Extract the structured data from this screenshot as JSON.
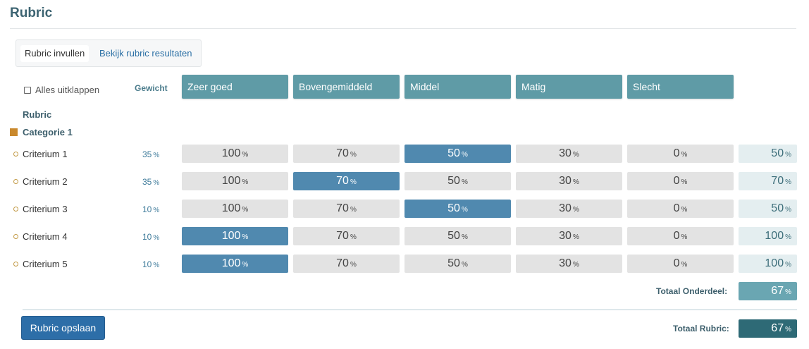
{
  "page": {
    "title": "Rubric"
  },
  "tabs": {
    "fill": "Rubric invullen",
    "results": "Bekijk rubric resultaten"
  },
  "controls": {
    "expand_all": "Alles uitklappen",
    "weight_header": "Gewicht"
  },
  "levels": [
    "Zeer goed",
    "Bovengemiddeld",
    "Middel",
    "Matig",
    "Slecht"
  ],
  "rubric_label": "Rubric",
  "category": {
    "name": "Categorie 1",
    "color": "#c9892d"
  },
  "unit": "%",
  "cell_values": [
    "100",
    "70",
    "50",
    "30",
    "0"
  ],
  "criteria": [
    {
      "name": "Criterium 1",
      "weight": "35",
      "selected_level": 2,
      "score": "50"
    },
    {
      "name": "Criterium 2",
      "weight": "35",
      "selected_level": 1,
      "score": "70"
    },
    {
      "name": "Criterium 3",
      "weight": "10",
      "selected_level": 2,
      "score": "50"
    },
    {
      "name": "Criterium 4",
      "weight": "10",
      "selected_level": 0,
      "score": "100"
    },
    {
      "name": "Criterium 5",
      "weight": "10",
      "selected_level": 0,
      "score": "100"
    }
  ],
  "totals": {
    "section_label": "Totaal Onderdeel:",
    "section_value": "67",
    "rubric_label": "Totaal Rubric:",
    "rubric_value": "67"
  },
  "save_button": "Rubric opslaan",
  "colors": {
    "header": "#5f9ba6",
    "selected": "#5089af",
    "unselected": "#e3e3e3",
    "section_total": "#6aa6b2",
    "rubric_total": "#2e6a76"
  }
}
